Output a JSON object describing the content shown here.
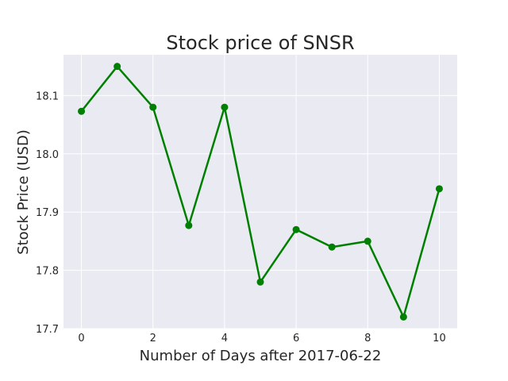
{
  "chart_data": {
    "type": "line",
    "title": "Stock price of SNSR",
    "xlabel": "Number of Days after 2017-06-22",
    "ylabel": "Stock Price (USD)",
    "x": [
      0,
      1,
      2,
      3,
      4,
      5,
      6,
      7,
      8,
      9,
      10
    ],
    "series": [
      {
        "values": [
          18.073,
          18.15,
          18.08,
          17.877,
          18.08,
          17.78,
          17.87,
          17.84,
          17.85,
          17.72,
          17.94
        ]
      }
    ],
    "xlim": [
      -0.5,
      10.5
    ],
    "ylim": [
      17.7,
      18.17
    ],
    "xticks": [
      0,
      2,
      4,
      6,
      8,
      10
    ],
    "xtick_labels": [
      "0",
      "2",
      "4",
      "6",
      "8",
      "10"
    ],
    "yticks": [
      17.7,
      17.8,
      17.9,
      18.0,
      18.1
    ],
    "ytick_labels": [
      "17.7",
      "17.8",
      "17.9",
      "18.0",
      "18.1"
    ],
    "grid": true,
    "colors": {
      "line": "#008000",
      "background": "#eaeaf2",
      "grid": "#ffffff"
    }
  }
}
